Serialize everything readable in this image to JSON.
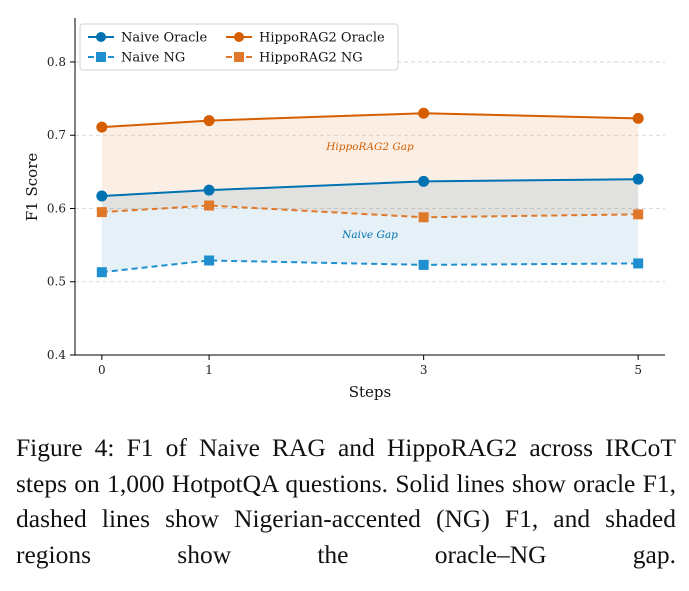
{
  "chart_data": {
    "type": "line",
    "xlabel": "Steps",
    "ylabel": "F1 Score",
    "x": [
      0,
      1,
      3,
      5
    ],
    "xticks": [
      0,
      1,
      3,
      5
    ],
    "xlim": [
      -0.25,
      5.25
    ],
    "yticks": [
      "0.4",
      "0.5",
      "0.6",
      "0.7",
      "0.8"
    ],
    "ylim": [
      0.4,
      0.86
    ],
    "grid": "horizontal-dashed",
    "legend_placement": "top-left",
    "series": [
      {
        "name": "Naive Oracle",
        "values": [
          0.617,
          0.625,
          0.637,
          0.64
        ],
        "color": "#0072B2",
        "marker": "circle",
        "linestyle": "solid"
      },
      {
        "name": "Naive NG",
        "values": [
          0.513,
          0.529,
          0.523,
          0.525
        ],
        "color": "#1f8fcf",
        "marker": "square",
        "linestyle": "dashed"
      },
      {
        "name": "HippoRAG2 Oracle",
        "values": [
          0.711,
          0.72,
          0.73,
          0.723
        ],
        "color": "#D55E00",
        "marker": "circle",
        "linestyle": "solid"
      },
      {
        "name": "HippoRAG2 NG",
        "values": [
          0.595,
          0.604,
          0.588,
          0.592
        ],
        "color": "#E0782A",
        "marker": "square",
        "linestyle": "dashed"
      }
    ],
    "annotations": [
      {
        "text": "HippoRAG2 Gap",
        "x": 2.5,
        "y": 0.68,
        "color": "#D55E00"
      },
      {
        "text": "Naive Gap",
        "x": 2.5,
        "y": 0.56,
        "color": "#0072B2"
      }
    ],
    "shaded_regions": [
      {
        "between": [
          "HippoRAG2 Oracle",
          "HippoRAG2 NG"
        ],
        "color": "#D55E00",
        "opacity": 0.1
      },
      {
        "between": [
          "Naive Oracle",
          "Naive NG"
        ],
        "color": "#0072B2",
        "opacity": 0.1
      }
    ]
  },
  "caption": "Figure 4: F1 of Naive RAG and HippoRAG2 across IRCoT steps on 1,000 HotpotQA questions. Solid lines show oracle F1, dashed lines show Nigerian-accented (NG) F1, and shaded regions show the oracle–NG gap."
}
